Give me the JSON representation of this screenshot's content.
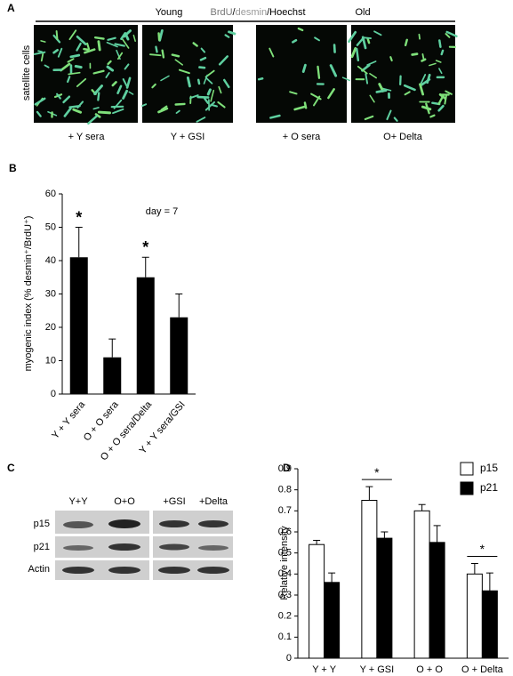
{
  "figure": {
    "A": {
      "label": "A",
      "left": "Young",
      "right": "Old",
      "stain": [
        "BrdU",
        "/",
        "desmin",
        "/",
        "Hoechst"
      ],
      "row_label": "satellite cells",
      "captions": [
        "+ Y sera",
        "Y + GSI",
        "+ O sera",
        "O+ Delta"
      ]
    },
    "C": {
      "label": "C",
      "lanes": [
        "Y+Y",
        "O+O",
        "+GSI",
        "+Delta"
      ],
      "rows": [
        "p15",
        "p21",
        "Actin"
      ]
    }
  },
  "chart_data": [
    {
      "type": "bar",
      "panel": "B",
      "categories": [
        "Y + Y sera",
        "O + O sera",
        "O + O sera/Delta",
        "Y + Y sera/GSI"
      ],
      "values": [
        41,
        11,
        35,
        23
      ],
      "errors": [
        9,
        5.5,
        6,
        7
      ],
      "color": "#000000",
      "significance": [
        "*",
        null,
        "*",
        null
      ],
      "annotation": "day = 7",
      "ylabel": "myogenic index (% desmin⁺/BrdU⁺)",
      "ylim": [
        0,
        60
      ],
      "yticks": [
        0,
        10,
        20,
        30,
        40,
        50,
        60
      ],
      "grid": false
    },
    {
      "type": "grouped_bar",
      "panel": "D",
      "categories": [
        "Y + Y",
        "Y + GSI",
        "O + O",
        "O + Delta"
      ],
      "series": [
        {
          "name": "p15",
          "color": "#ffffff",
          "values": [
            0.54,
            0.75,
            0.7,
            0.4
          ],
          "errors": [
            0.02,
            0.065,
            0.03,
            0.05
          ]
        },
        {
          "name": "p21",
          "color": "#000000",
          "values": [
            0.36,
            0.57,
            0.55,
            0.32
          ],
          "errors": [
            0.045,
            0.03,
            0.08,
            0.085
          ]
        }
      ],
      "significance": [
        null,
        "*",
        null,
        "*"
      ],
      "ylabel": "Relative intensity",
      "ylim": [
        0,
        0.9
      ],
      "yticks": [
        0,
        0.1,
        0.2,
        0.3,
        0.4,
        0.5,
        0.6,
        0.7,
        0.8,
        0.9
      ],
      "grid": false,
      "legend": "top-right"
    }
  ]
}
